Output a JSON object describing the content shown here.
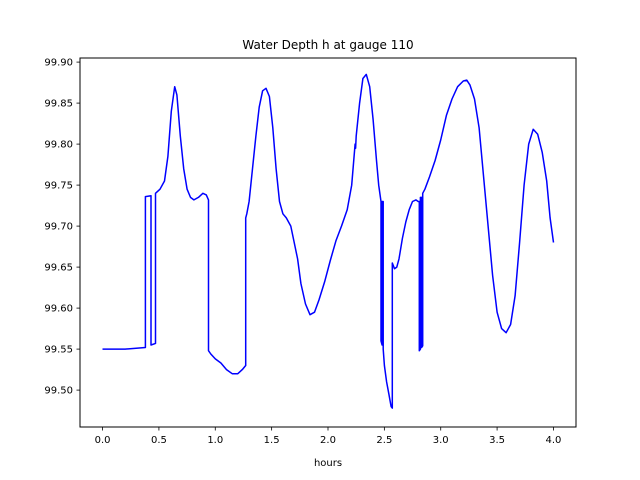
{
  "chart_data": {
    "type": "line",
    "title": "Water Depth h at gauge 110",
    "xlabel": "hours",
    "ylabel": "",
    "xlim": [
      -0.2,
      4.2
    ],
    "ylim": [
      99.455,
      99.905
    ],
    "xticks": [
      0.0,
      0.5,
      1.0,
      1.5,
      2.0,
      2.5,
      3.0,
      3.5,
      4.0
    ],
    "xtick_labels": [
      "0.0",
      "0.5",
      "1.0",
      "1.5",
      "2.0",
      "2.5",
      "3.0",
      "3.5",
      "4.0"
    ],
    "yticks": [
      99.5,
      99.55,
      99.6,
      99.65,
      99.7,
      99.75,
      99.8,
      99.85,
      99.9
    ],
    "ytick_labels": [
      "99.50",
      "99.55",
      "99.60",
      "99.65",
      "99.70",
      "99.75",
      "99.80",
      "99.85",
      "99.90"
    ],
    "grid": false,
    "series": [
      {
        "color": "#0000ff",
        "x": [
          0.0,
          0.2,
          0.38,
          0.38,
          0.43,
          0.43,
          0.47,
          0.47,
          0.51,
          0.55,
          0.58,
          0.61,
          0.64,
          0.66,
          0.69,
          0.72,
          0.75,
          0.78,
          0.81,
          0.85,
          0.89,
          0.92,
          0.94,
          0.94,
          0.96,
          1.0,
          1.05,
          1.1,
          1.15,
          1.2,
          1.24,
          1.27,
          1.27,
          1.28,
          1.3,
          1.33,
          1.36,
          1.39,
          1.42,
          1.45,
          1.48,
          1.51,
          1.54,
          1.57,
          1.6,
          1.63,
          1.67,
          1.7,
          1.73,
          1.76,
          1.8,
          1.84,
          1.88,
          1.92,
          1.97,
          2.02,
          2.07,
          2.12,
          2.17,
          2.21,
          2.24,
          2.245,
          2.25,
          2.28,
          2.31,
          2.34,
          2.37,
          2.4,
          2.43,
          2.45,
          2.47,
          2.47,
          2.48,
          2.48,
          2.49,
          2.49,
          2.5,
          2.52,
          2.54,
          2.56,
          2.57,
          2.57,
          2.59,
          2.61,
          2.63,
          2.66,
          2.69,
          2.72,
          2.75,
          2.78,
          2.8,
          2.81,
          2.81,
          2.82,
          2.82,
          2.83,
          2.83,
          2.84,
          2.84,
          2.86,
          2.9,
          2.95,
          3.0,
          3.05,
          3.1,
          3.15,
          3.2,
          3.23,
          3.26,
          3.3,
          3.34,
          3.38,
          3.42,
          3.46,
          3.5,
          3.54,
          3.58,
          3.62,
          3.66,
          3.7,
          3.74,
          3.78,
          3.82,
          3.86,
          3.9,
          3.94,
          3.97,
          4.0
        ],
        "y": [
          99.55,
          99.55,
          99.552,
          99.736,
          99.737,
          99.555,
          99.557,
          99.74,
          99.745,
          99.755,
          99.785,
          99.84,
          99.87,
          99.86,
          99.81,
          99.77,
          99.745,
          99.735,
          99.732,
          99.735,
          99.74,
          99.738,
          99.732,
          99.548,
          99.544,
          99.538,
          99.533,
          99.525,
          99.52,
          99.52,
          99.525,
          99.53,
          99.71,
          99.715,
          99.73,
          99.77,
          99.81,
          99.845,
          99.865,
          99.868,
          99.858,
          99.82,
          99.77,
          99.73,
          99.715,
          99.71,
          99.7,
          99.68,
          99.66,
          99.63,
          99.605,
          99.592,
          99.595,
          99.61,
          99.632,
          99.658,
          99.682,
          99.7,
          99.72,
          99.75,
          99.8,
          99.795,
          99.81,
          99.85,
          99.88,
          99.885,
          99.87,
          99.83,
          99.78,
          99.75,
          99.73,
          99.56,
          99.555,
          99.73,
          99.73,
          99.55,
          99.53,
          99.51,
          99.495,
          99.48,
          99.478,
          99.655,
          99.648,
          99.65,
          99.66,
          99.685,
          99.705,
          99.72,
          99.73,
          99.732,
          99.73,
          99.73,
          99.548,
          99.55,
          99.735,
          99.735,
          99.552,
          99.554,
          99.74,
          99.745,
          99.76,
          99.78,
          99.805,
          99.835,
          99.855,
          99.87,
          99.877,
          99.878,
          99.872,
          99.855,
          99.82,
          99.76,
          99.7,
          99.64,
          99.595,
          99.575,
          99.57,
          99.58,
          99.615,
          99.68,
          99.75,
          99.8,
          99.818,
          99.812,
          99.79,
          99.755,
          99.71,
          99.68
        ]
      }
    ]
  }
}
